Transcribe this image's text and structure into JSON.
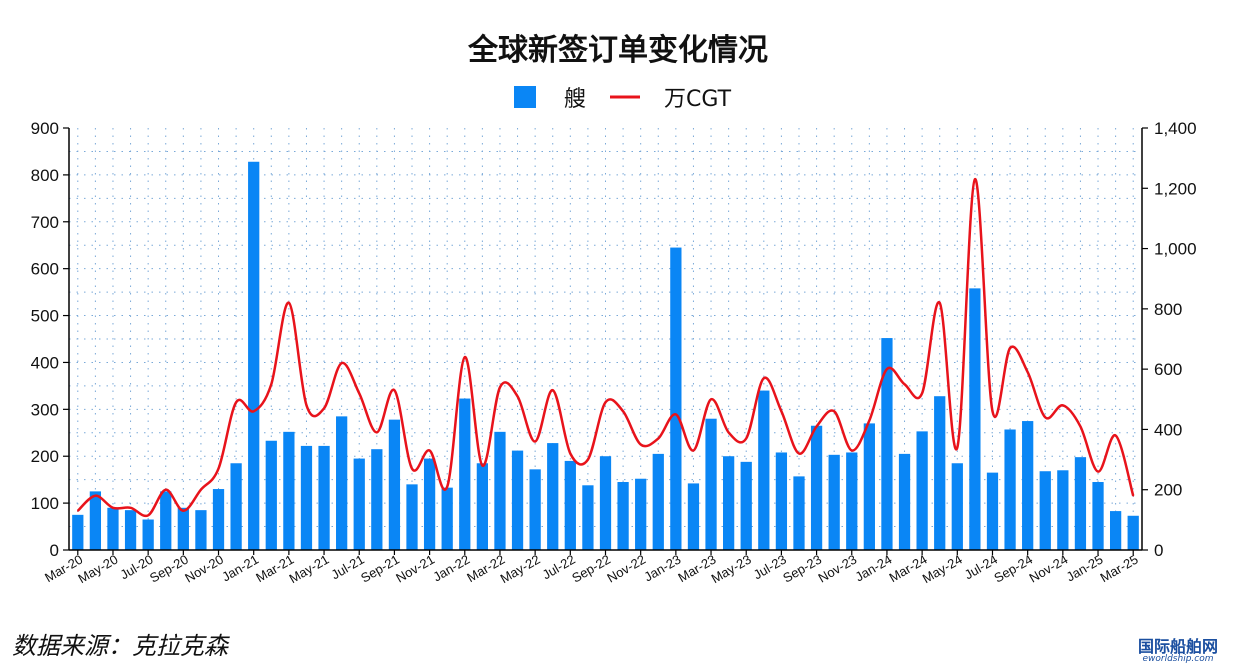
{
  "chart_data": {
    "type": "bar+line",
    "title": "全球新签订单变化情况",
    "categories": [
      "Mar-20",
      "Apr-20",
      "May-20",
      "Jun-20",
      "Jul-20",
      "Aug-20",
      "Sep-20",
      "Oct-20",
      "Nov-20",
      "Dec-20",
      "Jan-21",
      "Feb-21",
      "Mar-21",
      "Apr-21",
      "May-21",
      "Jun-21",
      "Jul-21",
      "Aug-21",
      "Sep-21",
      "Oct-21",
      "Nov-21",
      "Dec-21",
      "Jan-22",
      "Feb-22",
      "Mar-22",
      "Apr-22",
      "May-22",
      "Jun-22",
      "Jul-22",
      "Aug-22",
      "Sep-22",
      "Oct-22",
      "Nov-22",
      "Dec-22",
      "Jan-23",
      "Feb-23",
      "Mar-23",
      "Apr-23",
      "May-23",
      "Jun-23",
      "Jul-23",
      "Aug-23",
      "Sep-23",
      "Oct-23",
      "Nov-23",
      "Dec-23",
      "Jan-24",
      "Feb-24",
      "Mar-24",
      "Apr-24",
      "May-24",
      "Jun-24",
      "Jul-24",
      "Aug-24",
      "Sep-24",
      "Oct-24",
      "Nov-24",
      "Dec-24",
      "Jan-25",
      "Feb-25",
      "Mar-25"
    ],
    "x_tick_labels": [
      "Mar-20",
      "May-20",
      "Jul-20",
      "Sep-20",
      "Nov-20",
      "Jan-21",
      "Mar-21",
      "May-21",
      "Jul-21",
      "Sep-21",
      "Nov-21",
      "Jan-22",
      "Mar-22",
      "May-22",
      "Jul-22",
      "Sep-22",
      "Nov-22",
      "Jan-23",
      "Mar-23",
      "May-23",
      "Jul-23",
      "Sep-23",
      "Nov-23",
      "Jan-24",
      "Mar-24",
      "May-24",
      "Jul-24",
      "Sep-24",
      "Nov-24",
      "Jan-25",
      "Mar-25"
    ],
    "series": [
      {
        "name": "艘",
        "type": "bar",
        "axis": "left",
        "color": "#0a86f5",
        "values": [
          75,
          125,
          90,
          85,
          65,
          125,
          90,
          85,
          130,
          185,
          828,
          233,
          252,
          222,
          222,
          285,
          195,
          215,
          278,
          140,
          195,
          133,
          323,
          185,
          252,
          212,
          172,
          228,
          190,
          138,
          200,
          145,
          152,
          205,
          645,
          142,
          280,
          200,
          188,
          340,
          208,
          157,
          265,
          203,
          208,
          270,
          452,
          205,
          253,
          328,
          185,
          558,
          165,
          257,
          275,
          168,
          170,
          198,
          145,
          83,
          73
        ]
      },
      {
        "name": "万CGT",
        "type": "line",
        "axis": "right",
        "color": "#e8131b",
        "values": [
          130,
          180,
          140,
          140,
          115,
          200,
          130,
          200,
          270,
          490,
          460,
          550,
          820,
          480,
          470,
          620,
          520,
          390,
          530,
          270,
          330,
          210,
          640,
          280,
          540,
          510,
          360,
          530,
          320,
          300,
          490,
          460,
          350,
          370,
          450,
          330,
          500,
          390,
          370,
          570,
          460,
          320,
          410,
          460,
          330,
          430,
          600,
          550,
          520,
          820,
          340,
          1230,
          460,
          670,
          590,
          440,
          480,
          410,
          260,
          380,
          180
        ]
      }
    ],
    "y_left": {
      "min": 0,
      "max": 900,
      "ticks": [
        0,
        100,
        200,
        300,
        400,
        500,
        600,
        700,
        800,
        900
      ]
    },
    "y_right": {
      "min": 0,
      "max": 1400,
      "ticks": [
        "0",
        "200",
        "400",
        "600",
        "800",
        "1,000",
        "1,200",
        "1,400"
      ]
    },
    "grid": "dotted",
    "legend": "top-center"
  },
  "source_note": "数据来源：克拉克森",
  "watermark": {
    "main": "国际船舶网",
    "sub": "eworldship.com"
  }
}
